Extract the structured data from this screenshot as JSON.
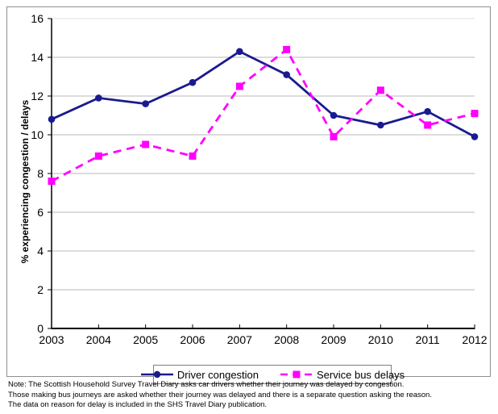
{
  "chart_data": {
    "type": "line",
    "title": "",
    "categories": [
      "2003",
      "2004",
      "2005",
      "2006",
      "2007",
      "2008",
      "2009",
      "2010",
      "2011",
      "2012"
    ],
    "series": [
      {
        "name": "Driver congestion",
        "values": [
          10.8,
          11.9,
          11.6,
          12.7,
          14.3,
          13.1,
          11.0,
          10.5,
          11.2,
          9.9
        ],
        "color": "#1a1a8f",
        "marker": "circle",
        "line_style": "solid"
      },
      {
        "name": "Service bus delays",
        "values": [
          7.6,
          8.9,
          9.5,
          8.9,
          12.5,
          14.4,
          9.9,
          12.3,
          10.5,
          11.1
        ],
        "color": "#ff00ff",
        "marker": "square",
        "line_style": "dashed"
      }
    ],
    "xlabel": "",
    "ylabel": "% experiencing congestion / delays",
    "ylim": [
      0,
      16
    ],
    "yticks": [
      0,
      2,
      4,
      6,
      8,
      10,
      12,
      14,
      16
    ],
    "grid": true,
    "legend_position": "bottom"
  },
  "colors": {
    "gridline": "#c8c8c8",
    "gridline_top": "#e6e6e6",
    "axis": "#000000",
    "frame_border": "#8f8f8f"
  },
  "notes": [
    "Note: The Scottish Household Survey Travel Diary asks car drivers whether their journey was delayed by congestion.",
    "Those making bus journeys are asked whether their journey was delayed and there is a separate question asking the reason.",
    "The data on reason for delay is included in the SHS Travel Diary publication."
  ]
}
